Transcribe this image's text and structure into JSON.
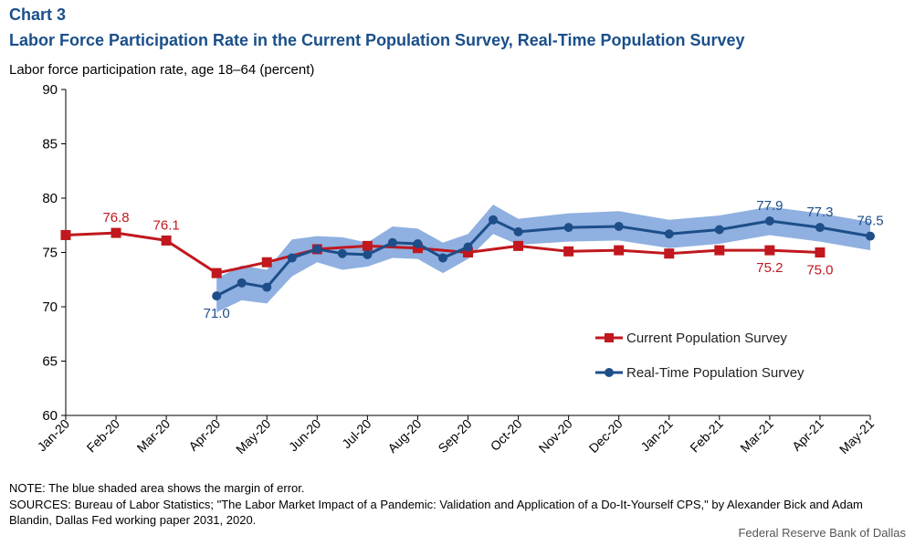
{
  "header": {
    "chart_number": "Chart 3",
    "title": "Labor Force Participation Rate in the Current Population Survey, Real-Time Population Survey",
    "ylabel": "Labor force participation rate, age 18–64 (percent)"
  },
  "footer": {
    "note": "NOTE: The blue shaded area shows the margin of error.",
    "sources": "SOURCES: Bureau of Labor Statistics; \"The Labor Market Impact of a Pandemic: Validation and Application of a Do-It-Yourself CPS,\" by Alexander Bick and Adam Blandin, Dallas Fed working paper 2031, 2020.",
    "credit": "Federal Reserve Bank of Dallas"
  },
  "colors": {
    "cps": "#c0181e",
    "rps": "#1d4e89",
    "band": "#8fb0e0",
    "axis": "#000000"
  },
  "chart_data": {
    "type": "line",
    "categories": [
      "Jan-20",
      "Feb-20",
      "Mar-20",
      "Apr-20",
      "May-20",
      "Jun-20",
      "Jul-20",
      "Aug-20",
      "Sep-20",
      "Oct-20",
      "Nov-20",
      "Dec-20",
      "Jan-21",
      "Feb-21",
      "Mar-21",
      "Apr-21",
      "May-21"
    ],
    "ylim": [
      60,
      90
    ],
    "yticks": [
      60,
      65,
      70,
      75,
      80,
      85,
      90
    ],
    "grid": false,
    "legend_position": "bottom-right",
    "series": [
      {
        "name": "Current Population Survey",
        "marker": "square",
        "points": [
          {
            "x": 0,
            "y": 76.6
          },
          {
            "x": 1,
            "y": 76.8,
            "label": "76.8"
          },
          {
            "x": 2,
            "y": 76.1,
            "label": "76.1"
          },
          {
            "x": 3,
            "y": 73.1
          },
          {
            "x": 4,
            "y": 74.1
          },
          {
            "x": 5,
            "y": 75.3
          },
          {
            "x": 6,
            "y": 75.6
          },
          {
            "x": 7,
            "y": 75.4
          },
          {
            "x": 8,
            "y": 75.0
          },
          {
            "x": 9,
            "y": 75.6
          },
          {
            "x": 10,
            "y": 75.1
          },
          {
            "x": 11,
            "y": 75.2
          },
          {
            "x": 12,
            "y": 74.9
          },
          {
            "x": 13,
            "y": 75.2
          },
          {
            "x": 14,
            "y": 75.2,
            "label": "75.2"
          },
          {
            "x": 15,
            "y": 75.0,
            "label": "75.0"
          }
        ]
      },
      {
        "name": "Real-Time Population Survey",
        "marker": "circle",
        "points": [
          {
            "x": 3,
            "y": 71.0,
            "lo": 69.5,
            "hi": 72.6,
            "label": "71.0"
          },
          {
            "x": 3.5,
            "y": 72.2,
            "lo": 70.6,
            "hi": 73.8
          },
          {
            "x": 4,
            "y": 71.8,
            "lo": 70.3,
            "hi": 73.4
          },
          {
            "x": 4.5,
            "y": 74.5,
            "lo": 72.8,
            "hi": 76.2
          },
          {
            "x": 5,
            "y": 75.3,
            "lo": 74.1,
            "hi": 76.5
          },
          {
            "x": 5.5,
            "y": 74.9,
            "lo": 73.4,
            "hi": 76.4
          },
          {
            "x": 6,
            "y": 74.8,
            "lo": 73.7,
            "hi": 75.9
          },
          {
            "x": 6.5,
            "y": 75.9,
            "lo": 74.5,
            "hi": 77.4
          },
          {
            "x": 7,
            "y": 75.8,
            "lo": 74.4,
            "hi": 77.2
          },
          {
            "x": 7.5,
            "y": 74.5,
            "lo": 73.1,
            "hi": 75.9
          },
          {
            "x": 8,
            "y": 75.5,
            "lo": 74.4,
            "hi": 76.7
          },
          {
            "x": 8.5,
            "y": 78.0,
            "lo": 76.7,
            "hi": 79.4
          },
          {
            "x": 9,
            "y": 76.9,
            "lo": 75.7,
            "hi": 78.1
          },
          {
            "x": 10,
            "y": 77.3,
            "lo": 76.0,
            "hi": 78.6
          },
          {
            "x": 11,
            "y": 77.4,
            "lo": 76.1,
            "hi": 78.8
          },
          {
            "x": 12,
            "y": 76.7,
            "lo": 75.4,
            "hi": 78.0
          },
          {
            "x": 13,
            "y": 77.1,
            "lo": 75.8,
            "hi": 78.4
          },
          {
            "x": 14,
            "y": 77.9,
            "lo": 76.6,
            "hi": 79.2,
            "label": "77.9"
          },
          {
            "x": 15,
            "y": 77.3,
            "lo": 76.0,
            "hi": 78.6,
            "label": "77.3"
          },
          {
            "x": 16,
            "y": 76.5,
            "lo": 75.2,
            "hi": 77.8,
            "label": "76.5"
          }
        ]
      }
    ]
  }
}
